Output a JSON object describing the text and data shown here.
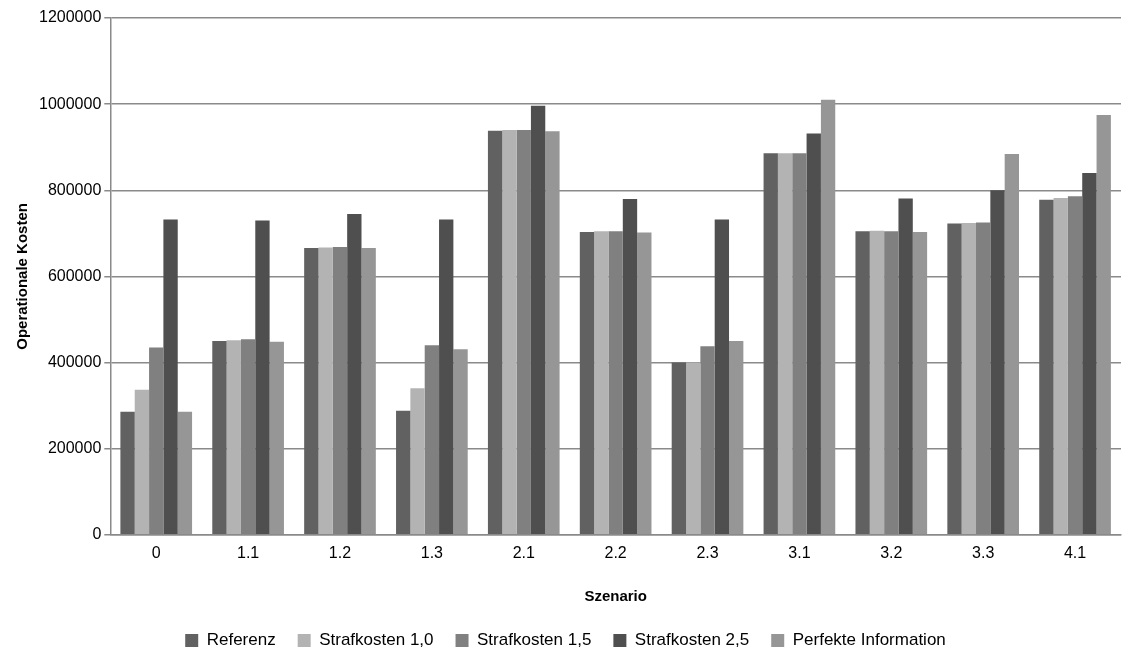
{
  "chart_data": {
    "type": "bar",
    "xlabel": "Szenario",
    "ylabel": "Operationale Kosten",
    "categories": [
      "0",
      "1.1",
      "1.2",
      "1.3",
      "2.1",
      "2.2",
      "2.3",
      "3.1",
      "3.2",
      "3.3",
      "4.1"
    ],
    "series": [
      {
        "name": "Referenz",
        "color": "#616161",
        "values": [
          286000,
          450000,
          666000,
          288000,
          938000,
          703000,
          400000,
          886000,
          705000,
          723000,
          778000
        ]
      },
      {
        "name": "Strafkosten 1,0",
        "color": "#b3b3b3",
        "values": [
          337000,
          452000,
          667000,
          340000,
          940000,
          705000,
          400000,
          886000,
          706000,
          724000,
          782000
        ]
      },
      {
        "name": "Strafkosten 1,5",
        "color": "#808080",
        "values": [
          435000,
          454000,
          668000,
          440000,
          940000,
          705000,
          438000,
          886000,
          705000,
          725000,
          786000
        ]
      },
      {
        "name": "Strafkosten 2,5",
        "color": "#4f4f4f",
        "values": [
          732000,
          730000,
          745000,
          732000,
          996000,
          780000,
          732000,
          932000,
          781000,
          800000,
          840000
        ]
      },
      {
        "name": "Perfekte Information",
        "color": "#969696",
        "values": [
          286000,
          448000,
          666000,
          431000,
          937000,
          702000,
          450000,
          1010000,
          703000,
          884000,
          975000
        ]
      }
    ],
    "ylim": [
      0,
      1200000
    ],
    "yticks": [
      0,
      200000,
      400000,
      600000,
      800000,
      1000000,
      1200000
    ],
    "grid": "y",
    "legend": "bottom"
  }
}
